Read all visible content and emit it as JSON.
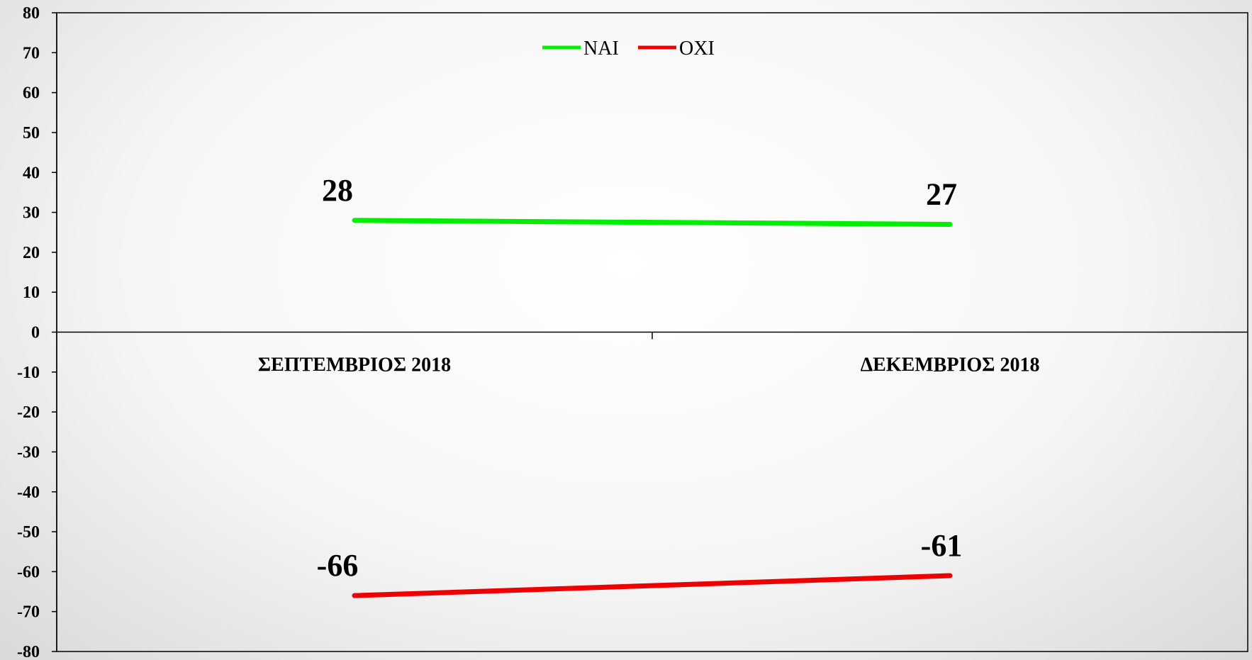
{
  "chart_data": {
    "type": "line",
    "categories": [
      "ΣΕΠΤΕΜΒΡΙΟΣ 2018",
      "ΔΕΚΕΜΒΡΙΟΣ 2018"
    ],
    "series": [
      {
        "name": "NAI",
        "values": [
          28,
          27
        ],
        "color": "#00ee00"
      },
      {
        "name": "OXI",
        "values": [
          -66,
          -61
        ],
        "color": "#ee0000"
      }
    ],
    "ylim": [
      -80,
      80
    ],
    "yticks": [
      80,
      70,
      60,
      50,
      40,
      30,
      20,
      10,
      0,
      -10,
      -20,
      -30,
      -40,
      -50,
      -60,
      -70,
      -80
    ],
    "title": "",
    "xlabel": "",
    "ylabel": "",
    "legend_position": "top-center",
    "grid": false,
    "data_labels": true
  }
}
